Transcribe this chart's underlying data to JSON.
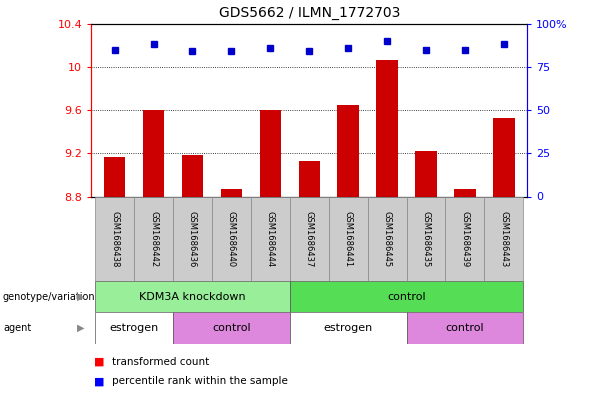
{
  "title": "GDS5662 / ILMN_1772703",
  "samples": [
    "GSM1686438",
    "GSM1686442",
    "GSM1686436",
    "GSM1686440",
    "GSM1686444",
    "GSM1686437",
    "GSM1686441",
    "GSM1686445",
    "GSM1686435",
    "GSM1686439",
    "GSM1686443"
  ],
  "bar_values": [
    9.17,
    9.6,
    9.18,
    8.87,
    9.6,
    9.13,
    9.65,
    10.06,
    9.22,
    8.87,
    9.53
  ],
  "percentile_values": [
    85,
    88,
    84,
    84,
    86,
    84,
    86,
    90,
    85,
    85,
    88
  ],
  "ylim_left": [
    8.8,
    10.4
  ],
  "ylim_right": [
    0,
    100
  ],
  "yticks_left": [
    8.8,
    9.2,
    9.6,
    10.0,
    10.4
  ],
  "yticks_right": [
    0,
    25,
    50,
    75,
    100
  ],
  "ytick_labels_left": [
    "8.8",
    "9.2",
    "9.6",
    "10",
    "10.4"
  ],
  "ytick_labels_right": [
    "0",
    "25",
    "50",
    "75",
    "100%"
  ],
  "bar_color": "#cc0000",
  "dot_color": "#0000cc",
  "bar_bottom": 8.8,
  "genotype_groups": [
    {
      "label": "KDM3A knockdown",
      "start": 0,
      "end": 5,
      "color": "#99ee99"
    },
    {
      "label": "control",
      "start": 5,
      "end": 11,
      "color": "#55dd55"
    }
  ],
  "agent_groups": [
    {
      "label": "estrogen",
      "start": 0,
      "end": 2,
      "color": "#ffffff"
    },
    {
      "label": "control",
      "start": 2,
      "end": 5,
      "color": "#dd88dd"
    },
    {
      "label": "estrogen",
      "start": 5,
      "end": 8,
      "color": "#ffffff"
    },
    {
      "label": "control",
      "start": 8,
      "end": 11,
      "color": "#dd88dd"
    }
  ]
}
